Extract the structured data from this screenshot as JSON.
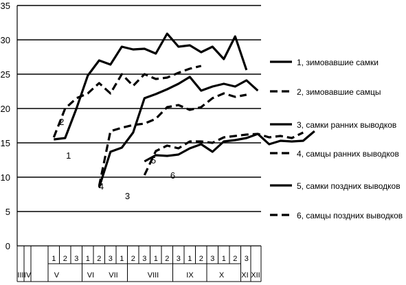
{
  "chart_data": {
    "type": "line",
    "ylim": [
      0,
      35
    ],
    "y_ticks": [
      "0",
      "5",
      "10",
      "15",
      "20",
      "25",
      "30",
      "35"
    ],
    "grid": "horizontal",
    "legend_position": "right",
    "x_decades_row": [
      "1",
      "2",
      "3",
      "1",
      "2",
      "3",
      "1",
      "2",
      "3",
      "1",
      "2",
      "3",
      "1",
      "2",
      "3",
      "1",
      "2",
      "3"
    ],
    "x_months_row": [
      "III",
      "IV",
      "V",
      "VI",
      "VII",
      "VIII",
      "IX",
      "X",
      "XI",
      "XII"
    ],
    "series": [
      {
        "name": "1, зимовавшие самки",
        "label": "1",
        "dashed": false,
        "points": [
          [
            0,
            15.5
          ],
          [
            1,
            15.7
          ],
          [
            2,
            20
          ],
          [
            3,
            24.8
          ],
          [
            4,
            27
          ],
          [
            5,
            26.4
          ],
          [
            6,
            29
          ],
          [
            7,
            28.6
          ],
          [
            8,
            28.7
          ],
          [
            9,
            28
          ],
          [
            10,
            30.9
          ],
          [
            11,
            29
          ],
          [
            12,
            29.2
          ],
          [
            13,
            28.2
          ],
          [
            14,
            29
          ],
          [
            15,
            27.2
          ],
          [
            16,
            30.5
          ],
          [
            17,
            25.6
          ]
        ]
      },
      {
        "name": "2, зимовавшие самцы",
        "label": "2",
        "dashed": true,
        "points": [
          [
            0,
            15.8
          ],
          [
            1,
            20
          ],
          [
            2,
            21.5
          ],
          [
            3,
            22.2
          ],
          [
            4,
            23.7
          ],
          [
            5,
            22.2
          ],
          [
            6,
            25
          ],
          [
            7,
            23.3
          ],
          [
            8,
            25
          ],
          [
            9,
            24.3
          ],
          [
            10,
            24.5
          ],
          [
            11,
            25.2
          ],
          [
            12,
            25.8
          ],
          [
            13,
            26.2
          ]
        ]
      },
      {
        "name": "3, самки ранних выводков",
        "label": "3",
        "dashed": false,
        "points": [
          [
            4,
            8.5
          ],
          [
            5,
            13.7
          ],
          [
            6,
            14.3
          ],
          [
            7,
            16.5
          ],
          [
            8,
            21.5
          ],
          [
            9,
            22.1
          ],
          [
            10,
            22.8
          ],
          [
            11,
            23.6
          ],
          [
            12,
            24.6
          ],
          [
            13,
            22.6
          ],
          [
            14,
            23.2
          ],
          [
            15,
            23.6
          ],
          [
            16,
            23.2
          ],
          [
            17,
            24.1
          ],
          [
            18,
            22.6
          ]
        ]
      },
      {
        "name": "4, самцы ранних выводков",
        "label": "4",
        "dashed": true,
        "points": [
          [
            4,
            8.7
          ],
          [
            5,
            16.7
          ],
          [
            6,
            17.2
          ],
          [
            7,
            17.6
          ],
          [
            8,
            17.8
          ],
          [
            9,
            18.5
          ],
          [
            10,
            20.2
          ],
          [
            11,
            20.5
          ],
          [
            12,
            19.8
          ],
          [
            13,
            20.2
          ],
          [
            14,
            21.5
          ],
          [
            15,
            22.2
          ],
          [
            16,
            21.7
          ],
          [
            17,
            22
          ]
        ]
      },
      {
        "name": "5, самки поздних выводков",
        "label": "5",
        "dashed": false,
        "points": [
          [
            8,
            12.3
          ],
          [
            9,
            13.2
          ],
          [
            10,
            13.1
          ],
          [
            11,
            13.3
          ],
          [
            12,
            14.2
          ],
          [
            13,
            14.8
          ],
          [
            14,
            13.7
          ],
          [
            15,
            15.2
          ],
          [
            16,
            15.4
          ],
          [
            17,
            15.7
          ],
          [
            18,
            16.3
          ],
          [
            19,
            14.8
          ],
          [
            20,
            15.3
          ],
          [
            21,
            15.2
          ],
          [
            22,
            15.3
          ],
          [
            23,
            16.7
          ]
        ]
      },
      {
        "name": "6, самцы поздних выводков",
        "label": "6",
        "dashed": true,
        "points": [
          [
            8,
            10.3
          ],
          [
            9,
            13.8
          ],
          [
            10,
            14.6
          ],
          [
            11,
            14.2
          ],
          [
            12,
            15.2
          ],
          [
            13,
            15.2
          ],
          [
            14,
            15
          ],
          [
            15,
            15.8
          ],
          [
            16,
            16
          ],
          [
            17,
            16.2
          ],
          [
            18,
            16.3
          ],
          [
            19,
            15.8
          ],
          [
            20,
            16
          ],
          [
            21,
            15.7
          ],
          [
            22,
            16.5
          ]
        ]
      }
    ],
    "point_labels": [
      {
        "text": "1",
        "x": 1.3,
        "y": 13.2
      },
      {
        "text": "2",
        "x": 0.7,
        "y": 18.1
      },
      {
        "text": "3",
        "x": 6.5,
        "y": 7.3
      },
      {
        "text": "4",
        "x": 4.2,
        "y": 8.7
      },
      {
        "text": "5",
        "x": 8.8,
        "y": 12.5
      },
      {
        "text": "6",
        "x": 10.5,
        "y": 10.3
      }
    ]
  }
}
